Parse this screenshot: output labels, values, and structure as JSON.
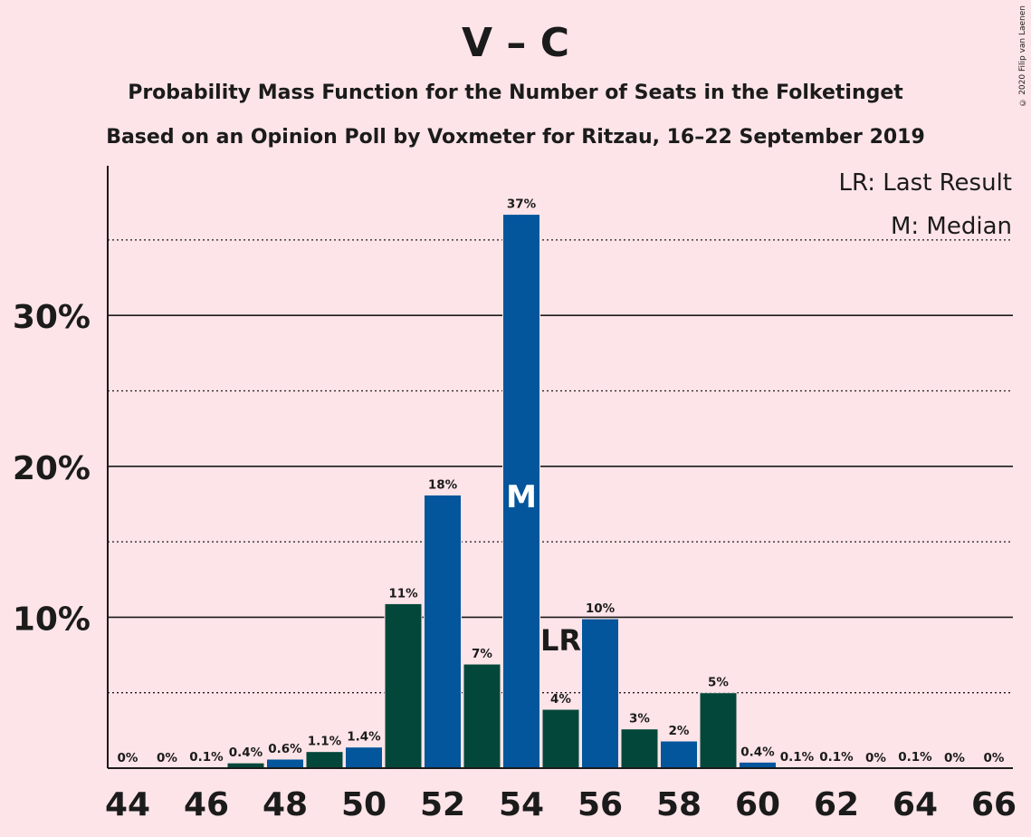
{
  "header": {
    "title": "V – C",
    "subtitle1": "Probability Mass Function for the Number of Seats in the Folketinget",
    "subtitle2": "Based on an Opinion Poll by Voxmeter for Ritzau, 16–22 September 2019",
    "credit": "© 2020 Filip van Laenen"
  },
  "legend": {
    "last_result": "LR: Last Result",
    "median": "M: Median"
  },
  "chart_data": {
    "type": "bar",
    "x": [
      44,
      45,
      46,
      47,
      48,
      49,
      50,
      51,
      52,
      53,
      54,
      55,
      56,
      57,
      58,
      59,
      60,
      61,
      62,
      63,
      64,
      65,
      66
    ],
    "values": [
      0,
      0,
      0.1,
      0.4,
      0.6,
      1.1,
      1.4,
      11,
      18,
      7,
      37,
      4,
      10,
      3,
      2,
      5,
      0.4,
      0.1,
      0.1,
      0,
      0.1,
      0,
      0
    ],
    "value_heights": [
      0,
      0,
      0.05,
      0.35,
      0.6,
      1.1,
      1.4,
      10.9,
      18.1,
      6.9,
      36.7,
      3.9,
      9.9,
      2.6,
      1.8,
      5.0,
      0.4,
      0.05,
      0.05,
      0,
      0.05,
      0,
      0
    ],
    "labels": [
      "0%",
      "0%",
      "0.1%",
      "0.4%",
      "0.6%",
      "1.1%",
      "1.4%",
      "11%",
      "18%",
      "7%",
      "37%",
      "4%",
      "10%",
      "3%",
      "2%",
      "5%",
      "0.4%",
      "0.1%",
      "0.1%",
      "0%",
      "0.1%",
      "0%",
      "0%"
    ],
    "x_ticks": [
      44,
      46,
      48,
      50,
      52,
      54,
      56,
      58,
      60,
      62,
      64,
      66
    ],
    "y_ticks": [
      10,
      20,
      30
    ],
    "y_tick_labels": [
      "10%",
      "20%",
      "30%"
    ],
    "ylim": [
      0,
      40
    ],
    "median_seat": 54,
    "median_marker": "M",
    "last_result_seat": 55,
    "last_result_marker": "LR",
    "colors": {
      "dark": "#03473a",
      "blue": "#03559c",
      "background": "#fde4e8"
    }
  }
}
